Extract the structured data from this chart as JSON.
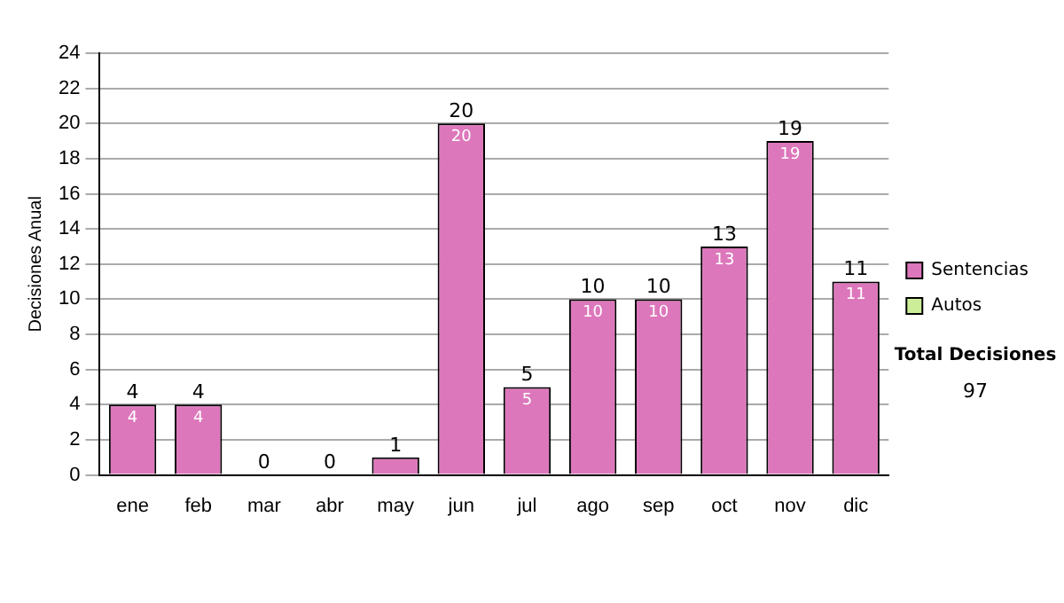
{
  "chart_data": {
    "type": "bar",
    "ylabel": "Decisiones Anual",
    "categories": [
      "ene",
      "feb",
      "mar",
      "abr",
      "may",
      "jun",
      "jul",
      "ago",
      "sep",
      "oct",
      "nov",
      "dic"
    ],
    "series": [
      {
        "name": "Sentencias",
        "color": "#dd77bb",
        "values": [
          4,
          4,
          0,
          0,
          1,
          20,
          5,
          10,
          10,
          13,
          19,
          11
        ],
        "value_labels": [
          "4",
          "4",
          null,
          null,
          null,
          "20",
          "5",
          "10",
          "10",
          "13",
          "19",
          "11"
        ]
      },
      {
        "name": "Autos",
        "color": "#ccee99",
        "values": [
          0,
          0,
          0,
          0,
          0,
          0,
          0,
          0,
          0,
          0,
          0,
          0
        ]
      }
    ],
    "stacked": true,
    "totals": [
      "4",
      "4",
      "0",
      "0",
      "1",
      "20",
      "5",
      "10",
      "10",
      "13",
      "19",
      "11"
    ],
    "ylim": [
      0,
      24
    ],
    "yticks": [
      0,
      2,
      4,
      6,
      8,
      10,
      12,
      14,
      16,
      18,
      20,
      22,
      24
    ],
    "grid": "y",
    "legend": "right",
    "annotations": [
      "Total Decisiones",
      "97"
    ]
  }
}
